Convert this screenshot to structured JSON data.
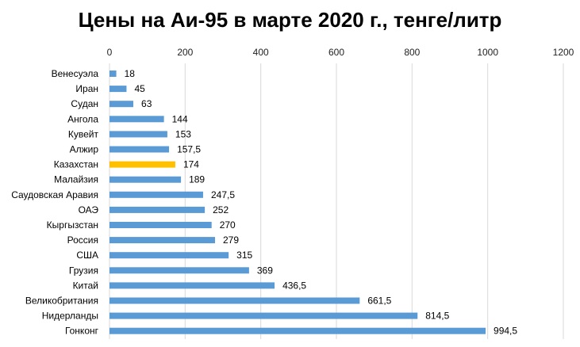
{
  "chart_data": {
    "type": "bar",
    "orientation": "horizontal",
    "title": "Цены на Аи-95 в марте 2020 г., тенге/литр",
    "categories": [
      "Венесуэла",
      "Иран",
      "Судан",
      "Ангола",
      "Кувейт",
      "Алжир",
      "Казахстан",
      "Малайзия",
      "Саудовская Аравия",
      "ОАЭ",
      "Кыргызстан",
      "Россия",
      "США",
      "Грузия",
      "Китай",
      "Великобритания",
      "Нидерланды",
      "Гонконг"
    ],
    "values": [
      18,
      45,
      63,
      144,
      153,
      157.5,
      174,
      189,
      247.5,
      252,
      270,
      279,
      315,
      369,
      436.5,
      661.5,
      814.5,
      994.5
    ],
    "value_labels": [
      "18",
      "45",
      "63",
      "144",
      "153",
      "157,5",
      "174",
      "189",
      "247,5",
      "252",
      "270",
      "279",
      "315",
      "369",
      "436,5",
      "661,5",
      "814,5",
      "994,5"
    ],
    "xlim": [
      0,
      1200
    ],
    "xticks": [
      0,
      200,
      400,
      600,
      800,
      1000,
      1200
    ],
    "xtick_labels": [
      "0",
      "200",
      "400",
      "600",
      "800",
      "1000",
      "1200"
    ],
    "x_axis_position": "top",
    "grid": "vertical",
    "legend": "none",
    "colors": {
      "default": "#5B9BD5",
      "highlight": "#FFC000",
      "grid": "#D9D9D9"
    },
    "highlight_category": "Казахстан"
  }
}
